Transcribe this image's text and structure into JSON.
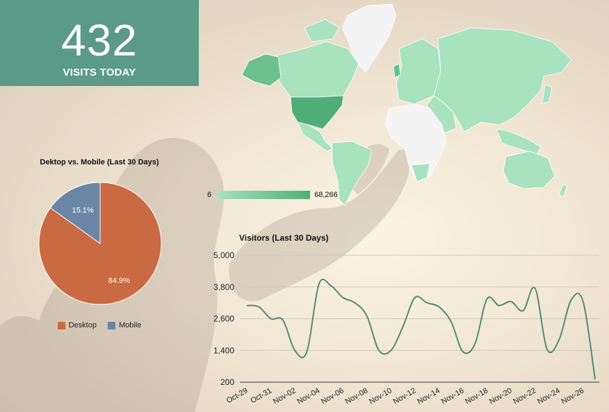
{
  "kpi": {
    "value": "432",
    "caption": "VISITS TODAY"
  },
  "pie_chart": {
    "title": "Dektop vs. Mobile (Last 30 Days)",
    "legend": [
      {
        "label": "Desktop",
        "color": "#c96a42"
      },
      {
        "label": "Mobile",
        "color": "#6b86a4"
      }
    ]
  },
  "map": {
    "scale_min": "6",
    "scale_max": "68,266",
    "colors": {
      "low": "#a8e2bf",
      "high": "#4fae75",
      "none": "#f4f4f4"
    }
  },
  "line_chart": {
    "title": "Visitors (Last 30 Days)"
  },
  "chart_data": [
    {
      "type": "pie",
      "title": "Dektop vs. Mobile (Last 30 Days)",
      "categories": [
        "Desktop",
        "Mobile"
      ],
      "values": [
        84.9,
        15.1
      ],
      "labels": [
        "84.9%",
        "15.1%"
      ],
      "colors": [
        "#c96a42",
        "#6b86a4"
      ],
      "legend": "bottom"
    },
    {
      "type": "line",
      "title": "Visitors (Last 30 Days)",
      "x": [
        "Oct-29",
        "Oct-30",
        "Oct-31",
        "Nov-01",
        "Nov-02",
        "Nov-03",
        "Nov-04",
        "Nov-05",
        "Nov-06",
        "Nov-07",
        "Nov-08",
        "Nov-09",
        "Nov-10",
        "Nov-11",
        "Nov-12",
        "Nov-13",
        "Nov-14",
        "Nov-15",
        "Nov-16",
        "Nov-17",
        "Nov-18",
        "Nov-19",
        "Nov-20",
        "Nov-21",
        "Nov-22",
        "Nov-23",
        "Nov-24",
        "Nov-25",
        "Nov-26",
        "Nov-27"
      ],
      "x_tick_labels": [
        "Oct-29",
        "Oct-31",
        "Nov-02",
        "Nov-04",
        "Nov-06",
        "Nov-08",
        "Nov-10",
        "Nov-12",
        "Nov-14",
        "Nov-16",
        "Nov-18",
        "Nov-20",
        "Nov-22",
        "Nov-24",
        "Nov-26"
      ],
      "series": [
        {
          "color": "#4f8c6e",
          "values": [
            3100,
            3050,
            2600,
            2550,
            1400,
            1350,
            3900,
            3850,
            3400,
            3200,
            2700,
            1400,
            1400,
            2300,
            3400,
            3200,
            3050,
            2500,
            1350,
            1650,
            3350,
            3100,
            3250,
            2900,
            3750,
            1450,
            1800,
            3300,
            3250,
            300
          ]
        }
      ],
      "ylim": [
        200,
        5000
      ],
      "yticks": [
        200,
        1400,
        2600,
        3800,
        5000
      ],
      "ytick_labels": [
        "200",
        "1,400",
        "2,600",
        "3,800",
        "5,000"
      ],
      "grid": true,
      "legend": "none"
    }
  ]
}
